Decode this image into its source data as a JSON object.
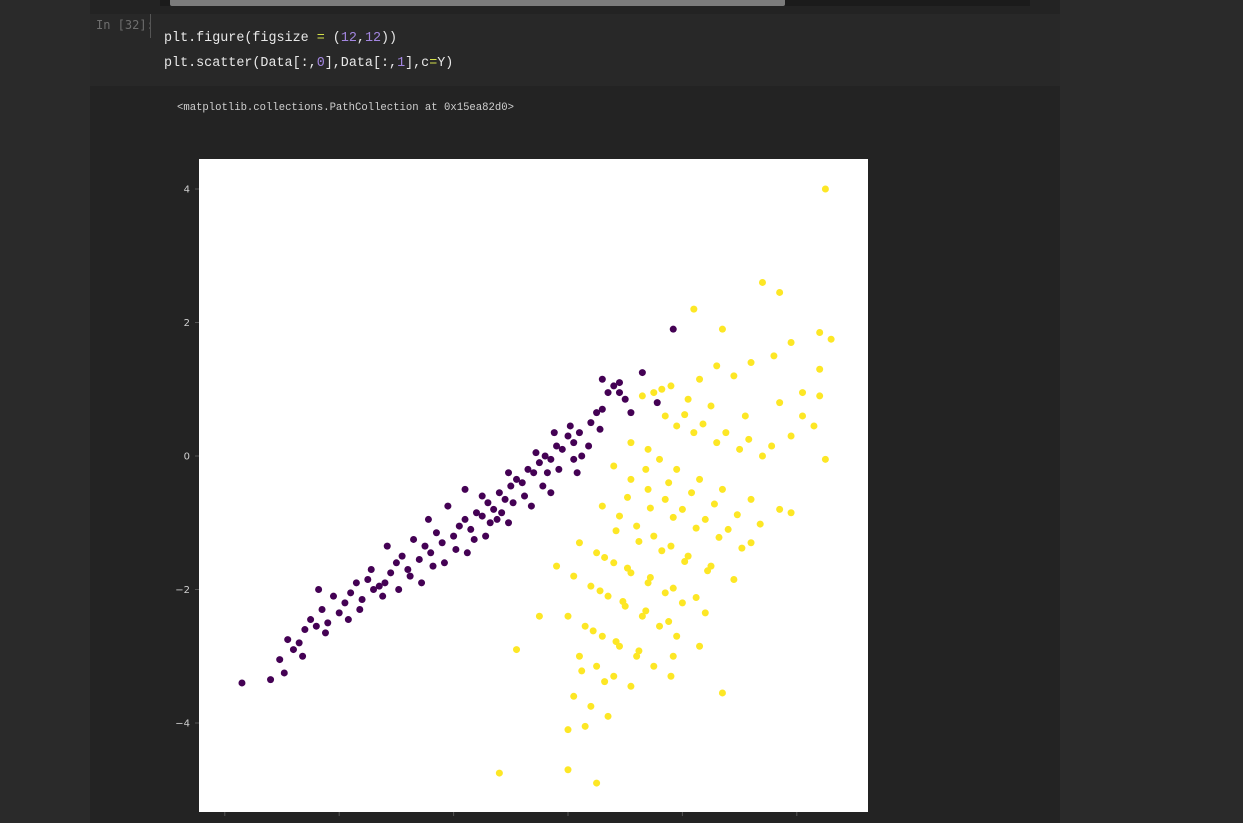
{
  "cell": {
    "prompt": "In [32]:",
    "code_line1_prefix": "plt.figure(figsize ",
    "code_line1_op": "=",
    "code_line1_mid": " (",
    "code_line1_n1": "12",
    "code_line1_comma": ",",
    "code_line1_n2": "12",
    "code_line1_end": "))",
    "code_line2_prefix": "plt.scatter(Data[:,",
    "code_line2_n1": "0",
    "code_line2_mid": "],Data[:,",
    "code_line2_n2": "1",
    "code_line2_mid2": "],c",
    "code_line2_op": "=",
    "code_line2_end": "Y)"
  },
  "output": {
    "repr": "<matplotlib.collections.PathCollection at 0x15ea82d0>"
  },
  "chart_data": {
    "type": "scatter",
    "xlim": [
      -3.1,
      2.7
    ],
    "ylim": [
      -5.3,
      4.45
    ],
    "yticks": [
      4,
      2,
      0,
      -2,
      -4
    ],
    "ytick_labels": [
      "4",
      "2",
      "0",
      "−2",
      "−4"
    ],
    "xticks": [
      -3,
      -2,
      -1,
      0,
      1,
      2
    ],
    "grid": false,
    "colors": {
      "class0": "#440154",
      "class1": "#fde725"
    },
    "series": [
      {
        "values": [
          [
            -2.85,
            -3.4
          ],
          [
            -2.6,
            -3.35
          ],
          [
            -2.48,
            -3.25
          ],
          [
            -2.52,
            -3.05
          ],
          [
            -2.4,
            -2.9
          ],
          [
            -2.35,
            -2.8
          ],
          [
            -2.45,
            -2.75
          ],
          [
            -2.3,
            -2.6
          ],
          [
            -2.2,
            -2.55
          ],
          [
            -2.25,
            -2.45
          ],
          [
            -2.1,
            -2.5
          ],
          [
            -2.0,
            -2.35
          ],
          [
            -2.15,
            -2.3
          ],
          [
            -1.95,
            -2.2
          ],
          [
            -2.05,
            -2.1
          ],
          [
            -1.9,
            -2.05
          ],
          [
            -1.8,
            -2.15
          ],
          [
            -1.7,
            -2.0
          ],
          [
            -1.75,
            -1.85
          ],
          [
            -1.6,
            -1.9
          ],
          [
            -1.55,
            -1.75
          ],
          [
            -1.5,
            -1.6
          ],
          [
            -1.4,
            -1.7
          ],
          [
            -1.45,
            -1.5
          ],
          [
            -1.3,
            -1.55
          ],
          [
            -1.25,
            -1.35
          ],
          [
            -1.2,
            -1.45
          ],
          [
            -1.1,
            -1.3
          ],
          [
            -1.15,
            -1.15
          ],
          [
            -1.0,
            -1.2
          ],
          [
            -0.95,
            -1.05
          ],
          [
            -0.9,
            -0.95
          ],
          [
            -0.85,
            -1.1
          ],
          [
            -0.8,
            -0.85
          ],
          [
            -0.75,
            -0.9
          ],
          [
            -0.7,
            -0.7
          ],
          [
            -0.65,
            -0.8
          ],
          [
            -0.6,
            -0.55
          ],
          [
            -0.55,
            -0.65
          ],
          [
            -0.5,
            -0.45
          ],
          [
            -0.45,
            -0.35
          ],
          [
            -0.4,
            -0.4
          ],
          [
            -0.35,
            -0.2
          ],
          [
            -0.3,
            -0.25
          ],
          [
            -0.25,
            -0.1
          ],
          [
            -0.2,
            0.0
          ],
          [
            -0.15,
            -0.05
          ],
          [
            -0.1,
            0.15
          ],
          [
            -0.05,
            0.1
          ],
          [
            0.0,
            0.3
          ],
          [
            0.05,
            0.2
          ],
          [
            0.1,
            0.35
          ],
          [
            0.2,
            0.5
          ],
          [
            0.25,
            0.65
          ],
          [
            0.3,
            0.7
          ],
          [
            0.35,
            0.95
          ],
          [
            0.4,
            1.05
          ],
          [
            0.45,
            0.95
          ],
          [
            0.5,
            0.85
          ],
          [
            0.55,
            0.65
          ],
          [
            0.65,
            1.25
          ],
          [
            0.92,
            1.9
          ],
          [
            0.78,
            0.8
          ],
          [
            0.45,
            1.1
          ],
          [
            0.3,
            1.15
          ],
          [
            -1.85,
            -1.9
          ],
          [
            -1.65,
            -1.95
          ],
          [
            -1.35,
            -1.25
          ],
          [
            -1.05,
            -0.75
          ],
          [
            -0.75,
            -0.6
          ],
          [
            -0.62,
            -0.95
          ],
          [
            -0.52,
            -0.25
          ],
          [
            -0.48,
            -0.7
          ],
          [
            -0.28,
            0.05
          ],
          [
            -0.18,
            -0.25
          ],
          [
            -0.12,
            0.35
          ],
          [
            0.02,
            0.45
          ],
          [
            0.12,
            0.0
          ],
          [
            -0.9,
            -0.5
          ],
          [
            -1.22,
            -0.95
          ],
          [
            -1.58,
            -1.35
          ],
          [
            -2.18,
            -2.0
          ],
          [
            -1.92,
            -2.45
          ],
          [
            -1.72,
            -1.7
          ],
          [
            -1.38,
            -1.8
          ],
          [
            -1.18,
            -1.65
          ],
          [
            -0.98,
            -1.4
          ],
          [
            -0.82,
            -1.25
          ],
          [
            -0.68,
            -1.0
          ],
          [
            -0.58,
            -0.85
          ],
          [
            -0.38,
            -0.6
          ],
          [
            -0.22,
            -0.45
          ],
          [
            -0.08,
            -0.2
          ],
          [
            0.05,
            -0.05
          ],
          [
            0.18,
            0.15
          ],
          [
            0.28,
            0.4
          ],
          [
            -2.32,
            -3.0
          ],
          [
            -2.12,
            -2.65
          ],
          [
            -1.82,
            -2.3
          ],
          [
            -1.62,
            -2.1
          ],
          [
            -1.48,
            -2.0
          ],
          [
            -1.28,
            -1.9
          ],
          [
            -1.08,
            -1.6
          ],
          [
            -0.88,
            -1.45
          ],
          [
            -0.72,
            -1.2
          ],
          [
            -0.52,
            -1.0
          ],
          [
            -0.32,
            -0.75
          ],
          [
            -0.15,
            -0.55
          ],
          [
            0.08,
            -0.25
          ]
        ]
      },
      {
        "values": [
          [
            2.25,
            4.0
          ],
          [
            1.7,
            2.6
          ],
          [
            1.85,
            2.45
          ],
          [
            1.1,
            2.2
          ],
          [
            1.35,
            1.9
          ],
          [
            2.3,
            1.75
          ],
          [
            2.2,
            1.85
          ],
          [
            1.95,
            1.7
          ],
          [
            1.8,
            1.5
          ],
          [
            1.6,
            1.4
          ],
          [
            1.3,
            1.35
          ],
          [
            1.45,
            1.2
          ],
          [
            1.15,
            1.15
          ],
          [
            0.9,
            1.05
          ],
          [
            0.75,
            0.95
          ],
          [
            1.05,
            0.85
          ],
          [
            1.25,
            0.75
          ],
          [
            1.55,
            0.6
          ],
          [
            1.85,
            0.8
          ],
          [
            2.05,
            0.95
          ],
          [
            2.2,
            0.9
          ],
          [
            0.85,
            0.6
          ],
          [
            0.95,
            0.45
          ],
          [
            1.1,
            0.35
          ],
          [
            1.3,
            0.2
          ],
          [
            1.5,
            0.1
          ],
          [
            1.7,
            0.0
          ],
          [
            1.95,
            0.3
          ],
          [
            2.15,
            0.45
          ],
          [
            0.55,
            0.2
          ],
          [
            0.7,
            0.1
          ],
          [
            0.8,
            -0.05
          ],
          [
            0.95,
            -0.2
          ],
          [
            1.15,
            -0.35
          ],
          [
            1.35,
            -0.5
          ],
          [
            1.6,
            -0.65
          ],
          [
            1.85,
            -0.8
          ],
          [
            0.4,
            -0.15
          ],
          [
            0.55,
            -0.35
          ],
          [
            0.7,
            -0.5
          ],
          [
            0.85,
            -0.65
          ],
          [
            1.0,
            -0.8
          ],
          [
            1.2,
            -0.95
          ],
          [
            1.4,
            -1.1
          ],
          [
            1.6,
            -1.3
          ],
          [
            0.3,
            -0.75
          ],
          [
            0.45,
            -0.9
          ],
          [
            0.6,
            -1.05
          ],
          [
            0.75,
            -1.2
          ],
          [
            0.9,
            -1.35
          ],
          [
            1.05,
            -1.5
          ],
          [
            1.25,
            -1.65
          ],
          [
            1.45,
            -1.85
          ],
          [
            0.1,
            -1.3
          ],
          [
            0.25,
            -1.45
          ],
          [
            0.4,
            -1.6
          ],
          [
            0.55,
            -1.75
          ],
          [
            0.7,
            -1.9
          ],
          [
            0.85,
            -2.05
          ],
          [
            1.0,
            -2.2
          ],
          [
            1.2,
            -2.35
          ],
          [
            0.05,
            -1.8
          ],
          [
            0.2,
            -1.95
          ],
          [
            0.35,
            -2.1
          ],
          [
            0.5,
            -2.25
          ],
          [
            0.65,
            -2.4
          ],
          [
            0.8,
            -2.55
          ],
          [
            0.95,
            -2.7
          ],
          [
            1.15,
            -2.85
          ],
          [
            0.0,
            -2.4
          ],
          [
            0.15,
            -2.55
          ],
          [
            0.3,
            -2.7
          ],
          [
            0.45,
            -2.85
          ],
          [
            0.6,
            -3.0
          ],
          [
            0.75,
            -3.15
          ],
          [
            0.9,
            -3.3
          ],
          [
            0.1,
            -3.0
          ],
          [
            0.25,
            -3.15
          ],
          [
            0.4,
            -3.3
          ],
          [
            0.55,
            -3.45
          ],
          [
            0.05,
            -3.6
          ],
          [
            0.2,
            -3.75
          ],
          [
            0.35,
            -3.9
          ],
          [
            0.0,
            -4.1
          ],
          [
            0.15,
            -4.05
          ],
          [
            -0.6,
            -4.75
          ],
          [
            0.0,
            -4.7
          ],
          [
            0.25,
            -4.9
          ],
          [
            -0.45,
            -2.9
          ],
          [
            -0.25,
            -2.4
          ],
          [
            -0.1,
            -1.65
          ],
          [
            1.35,
            -3.55
          ],
          [
            0.92,
            -3.0
          ],
          [
            2.25,
            -0.05
          ],
          [
            2.05,
            0.6
          ],
          [
            1.95,
            -0.85
          ],
          [
            2.2,
            1.3
          ],
          [
            0.65,
            0.9
          ],
          [
            0.82,
            1.0
          ],
          [
            1.02,
            0.62
          ],
          [
            1.18,
            0.48
          ],
          [
            1.38,
            0.35
          ],
          [
            1.58,
            0.25
          ],
          [
            1.78,
            0.15
          ],
          [
            0.68,
            -0.2
          ],
          [
            0.88,
            -0.4
          ],
          [
            1.08,
            -0.55
          ],
          [
            1.28,
            -0.72
          ],
          [
            1.48,
            -0.88
          ],
          [
            1.68,
            -1.02
          ],
          [
            0.52,
            -0.62
          ],
          [
            0.72,
            -0.78
          ],
          [
            0.92,
            -0.92
          ],
          [
            1.12,
            -1.08
          ],
          [
            1.32,
            -1.22
          ],
          [
            1.52,
            -1.38
          ],
          [
            0.42,
            -1.12
          ],
          [
            0.62,
            -1.28
          ],
          [
            0.82,
            -1.42
          ],
          [
            1.02,
            -1.58
          ],
          [
            1.22,
            -1.72
          ],
          [
            0.32,
            -1.52
          ],
          [
            0.52,
            -1.68
          ],
          [
            0.72,
            -1.82
          ],
          [
            0.92,
            -1.98
          ],
          [
            1.12,
            -2.12
          ],
          [
            0.28,
            -2.02
          ],
          [
            0.48,
            -2.18
          ],
          [
            0.68,
            -2.32
          ],
          [
            0.88,
            -2.48
          ],
          [
            0.22,
            -2.62
          ],
          [
            0.42,
            -2.78
          ],
          [
            0.62,
            -2.92
          ],
          [
            0.12,
            -3.22
          ],
          [
            0.32,
            -3.38
          ]
        ]
      }
    ]
  }
}
